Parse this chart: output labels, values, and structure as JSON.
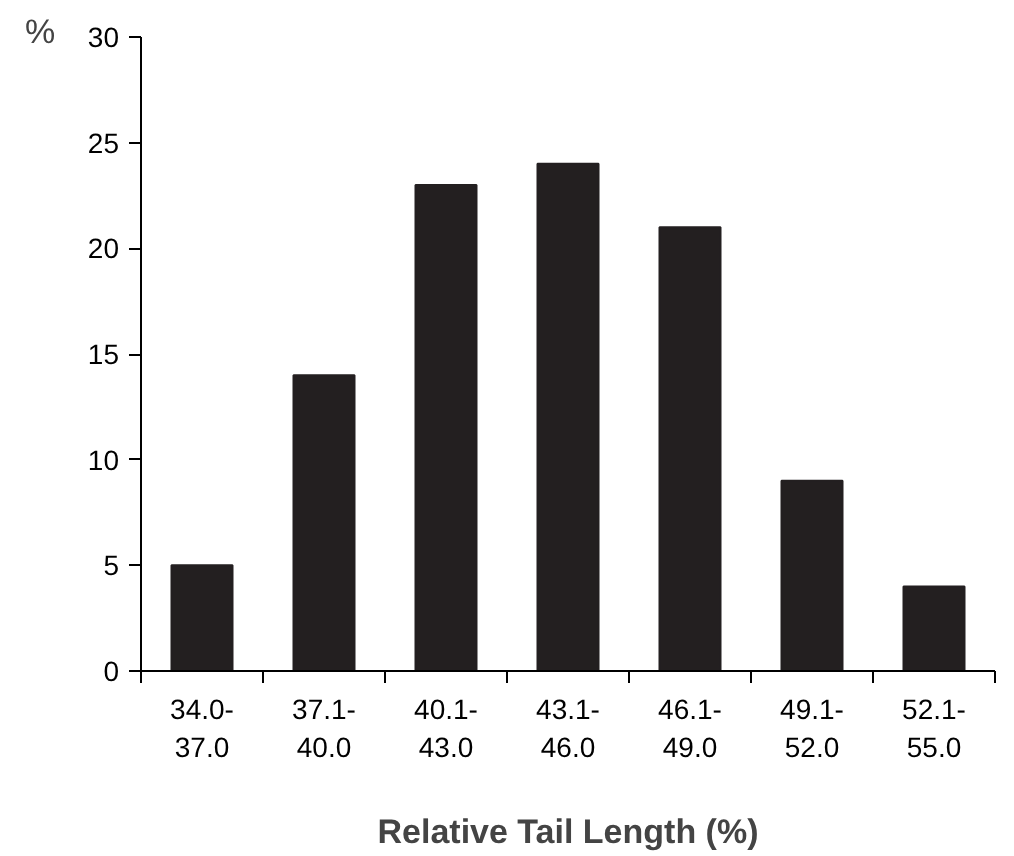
{
  "chart_data": {
    "type": "bar",
    "xlabel": "Relative Tail Length (%)",
    "ylabel": "%",
    "categories": [
      "34.0-37.0",
      "37.1-40.0",
      "40.1-43.0",
      "43.1-46.0",
      "46.1-49.0",
      "49.1-52.0",
      "52.1-55.0"
    ],
    "values": [
      5,
      14,
      23,
      24,
      21,
      9,
      4
    ],
    "color": "#231f20",
    "ylim": [
      0,
      30
    ],
    "yticks": [
      0,
      5,
      10,
      15,
      20,
      25,
      30
    ],
    "grid": false
  }
}
